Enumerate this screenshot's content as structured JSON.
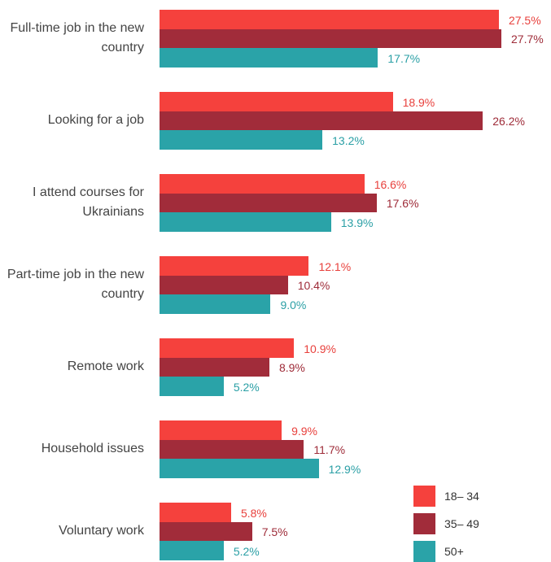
{
  "chart_data": {
    "type": "bar",
    "orientation": "horizontal",
    "categories": [
      "Full-time job in the new country",
      "Looking for a job",
      "I attend courses for Ukrainians",
      "Part-time job in the new country",
      "Remote work",
      "Household issues",
      "Voluntary work"
    ],
    "series": [
      {
        "name": "18– 34",
        "color": "#f5413d",
        "values": [
          27.5,
          18.9,
          16.6,
          12.1,
          10.9,
          9.9,
          5.8
        ],
        "value_labels": [
          "27.5%",
          "18.9%",
          "16.6%",
          "12.1%",
          "10.9%",
          "9.9%",
          "5.8%"
        ]
      },
      {
        "name": "35– 49",
        "color": "#a12c3a",
        "values": [
          27.7,
          26.2,
          17.6,
          10.4,
          8.9,
          11.7,
          7.5
        ],
        "value_labels": [
          "27.7%",
          "26.2%",
          "17.6%",
          "10.4%",
          "8.9%",
          "11.7%",
          "7.5%"
        ]
      },
      {
        "name": "50+",
        "color": "#2aa3a8",
        "values": [
          17.7,
          13.2,
          13.9,
          9.0,
          5.2,
          12.9,
          5.2
        ],
        "value_labels": [
          "17.7%",
          "13.2%",
          "13.9%",
          "9.0%",
          "5.2%",
          "12.9%",
          "5.2%"
        ]
      }
    ],
    "legend": "bottom-right"
  }
}
